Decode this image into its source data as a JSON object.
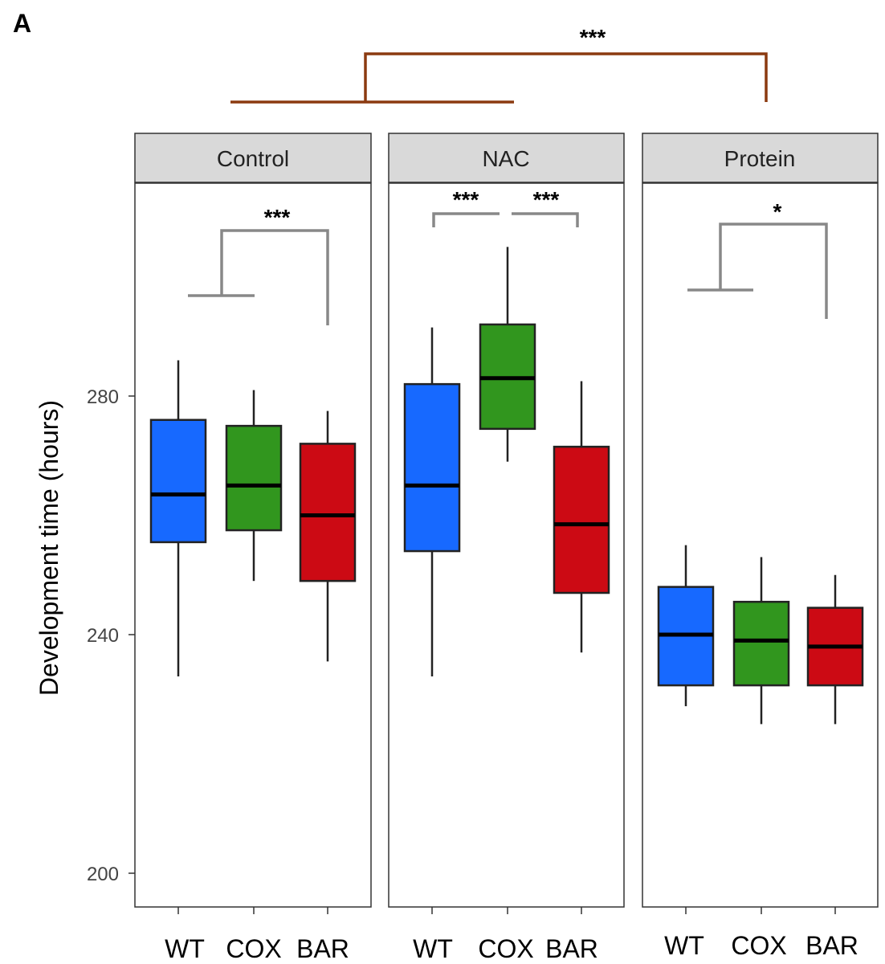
{
  "panel_label": "A",
  "chart_data": {
    "type": "boxplot",
    "ylabel": "Development time (hours)",
    "yticks": [
      200,
      240,
      280
    ],
    "ylim": [
      195,
      310
    ],
    "categories": [
      "WT",
      "COX",
      "BAR"
    ],
    "colors": {
      "WT": "#1769ff",
      "COX": "#31961e",
      "BAR": "#cc0a14"
    },
    "facets": [
      {
        "name": "Control",
        "boxes": [
          {
            "category": "WT",
            "whisker_low": 233,
            "q1": 255.5,
            "median": 263.5,
            "q3": 276,
            "whisker_high": 286
          },
          {
            "category": "COX",
            "whisker_low": 249,
            "q1": 257.5,
            "median": 265,
            "q3": 275,
            "whisker_high": 281
          },
          {
            "category": "BAR",
            "whisker_low": 235.5,
            "q1": 249,
            "median": 260,
            "q3": 272,
            "whisker_high": 277.5
          }
        ],
        "comparisons": [
          {
            "groups": [
              "WT-COX",
              "BAR"
            ],
            "label": "***"
          }
        ]
      },
      {
        "name": "NAC",
        "boxes": [
          {
            "category": "WT",
            "whisker_low": 233,
            "q1": 254,
            "median": 265,
            "q3": 282,
            "whisker_high": 291.5
          },
          {
            "category": "COX",
            "whisker_low": 269,
            "q1": 274.5,
            "median": 283,
            "q3": 292,
            "whisker_high": 305
          },
          {
            "category": "BAR",
            "whisker_low": 237,
            "q1": 247,
            "median": 258.5,
            "q3": 271.5,
            "whisker_high": 282.5
          }
        ],
        "comparisons": [
          {
            "groups": [
              "WT",
              "COX"
            ],
            "label": "***"
          },
          {
            "groups": [
              "COX",
              "BAR"
            ],
            "label": "***"
          }
        ]
      },
      {
        "name": "Protein",
        "boxes": [
          {
            "category": "WT",
            "whisker_low": 228,
            "q1": 231.5,
            "median": 240,
            "q3": 248,
            "whisker_high": 255
          },
          {
            "category": "COX",
            "whisker_low": 225,
            "q1": 231.5,
            "median": 239,
            "q3": 245.5,
            "whisker_high": 253
          },
          {
            "category": "BAR",
            "whisker_low": 225,
            "q1": 231.5,
            "median": 238,
            "q3": 244.5,
            "whisker_high": 250
          }
        ],
        "comparisons": [
          {
            "groups": [
              "WT-COX",
              "BAR"
            ],
            "label": "*"
          }
        ]
      }
    ],
    "facet_comparisons": [
      {
        "groups": [
          "Control-NAC",
          "Protein"
        ],
        "label": "***"
      }
    ]
  }
}
